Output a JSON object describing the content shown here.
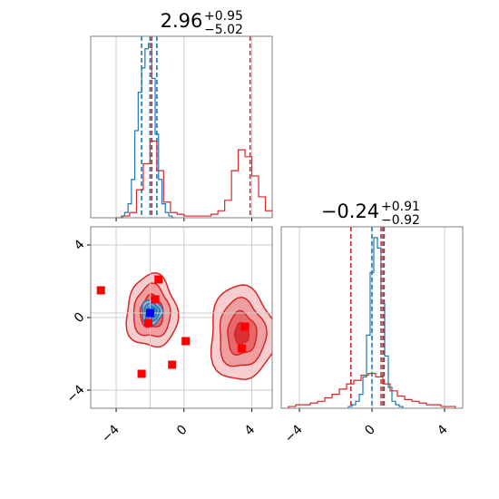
{
  "chart_data": {
    "type": "corner",
    "colors": {
      "blue": "#1f77b4",
      "red": "#d62728",
      "grid": "#cccccc",
      "axes": "#808080",
      "marker_blue": "#0000ff",
      "marker_red": "#ff0000"
    },
    "grid": true,
    "parameters": [
      {
        "title_main": "2.96",
        "title_sup": "+0.95",
        "title_sub": "−5.02",
        "range": [
          -5.5,
          5.2
        ],
        "ticks": [
          -4,
          0,
          4
        ],
        "tick_labels": [
          "−4",
          "0",
          "4"
        ]
      },
      {
        "title_main": "−0.24",
        "title_sup": "+0.91",
        "title_sub": "−0.92",
        "range": [
          -5,
          5
        ],
        "ticks": [
          -4,
          0,
          4
        ],
        "tick_labels": [
          "−4",
          "0",
          "4"
        ]
      }
    ],
    "hist_1": {
      "series": [
        {
          "color": "blue",
          "quantiles": [
            -2.5,
            -2.0,
            -1.6
          ],
          "bin_centers": [
            -3.6,
            -3.4,
            -3.2,
            -3.0,
            -2.8,
            -2.6,
            -2.4,
            -2.2,
            -2.0,
            -1.8,
            -1.6,
            -1.4,
            -1.2,
            -1.0,
            -0.8,
            -0.6
          ],
          "counts": [
            0.01,
            0.03,
            0.08,
            0.22,
            0.5,
            0.72,
            0.86,
            0.97,
            1.0,
            0.8,
            0.48,
            0.22,
            0.08,
            0.03,
            0.01,
            0.0
          ]
        },
        {
          "color": "red",
          "quantiles": [
            -1.9,
            3.9
          ],
          "bin_centers": [
            -3.8,
            -3.4,
            -3.0,
            -2.6,
            -2.2,
            -1.8,
            -1.4,
            -1.0,
            -0.6,
            -0.2,
            0.2,
            0.6,
            1.0,
            1.4,
            1.8,
            2.2,
            2.6,
            3.0,
            3.4,
            3.8,
            4.2,
            4.6,
            5.0
          ],
          "counts": [
            0.0,
            0.01,
            0.03,
            0.16,
            0.31,
            0.44,
            0.27,
            0.09,
            0.03,
            0.02,
            0.01,
            0.01,
            0.01,
            0.01,
            0.02,
            0.04,
            0.1,
            0.27,
            0.39,
            0.35,
            0.24,
            0.12,
            0.04
          ]
        }
      ]
    },
    "hist_2": {
      "series": [
        {
          "color": "blue",
          "quantiles": [
            0.0,
            0.6
          ],
          "bin_centers": [
            -1.2,
            -1.0,
            -0.8,
            -0.6,
            -0.4,
            -0.2,
            0.0,
            0.2,
            0.4,
            0.6,
            0.8,
            1.0,
            1.2,
            1.4,
            1.6
          ],
          "counts": [
            0.01,
            0.02,
            0.04,
            0.08,
            0.18,
            0.42,
            0.78,
            0.98,
            0.92,
            0.6,
            0.3,
            0.12,
            0.04,
            0.02,
            0.01
          ]
        },
        {
          "color": "red",
          "quantiles": [
            -1.16,
            0.5,
            0.67
          ],
          "bin_centers": [
            -4.4,
            -4.0,
            -3.6,
            -3.2,
            -2.8,
            -2.4,
            -2.0,
            -1.6,
            -1.2,
            -0.8,
            -0.4,
            0.0,
            0.4,
            0.8,
            1.2,
            1.6,
            2.0,
            2.4,
            2.8,
            3.2,
            3.6,
            4.0,
            4.4
          ],
          "counts": [
            0.01,
            0.02,
            0.02,
            0.03,
            0.04,
            0.06,
            0.08,
            0.11,
            0.14,
            0.16,
            0.19,
            0.2,
            0.18,
            0.14,
            0.1,
            0.07,
            0.05,
            0.04,
            0.03,
            0.02,
            0.02,
            0.01,
            0.01
          ]
        }
      ]
    },
    "contour_2d": {
      "blobs": [
        {
          "color": "red",
          "cx": -1.9,
          "cy": 0.3,
          "rx": 1.5,
          "ry": 2.0
        },
        {
          "color": "red",
          "cx": 3.4,
          "cy": -0.9,
          "rx": 1.9,
          "ry": 2.6
        },
        {
          "color": "blue",
          "cx": -1.9,
          "cy": 0.3,
          "rx": 0.6,
          "ry": 0.7
        }
      ],
      "markers": [
        {
          "color": "marker_red",
          "x": -4.9,
          "y": 1.5
        },
        {
          "color": "marker_red",
          "x": -1.5,
          "y": 2.1
        },
        {
          "color": "marker_red",
          "x": -1.7,
          "y": 1.0
        },
        {
          "color": "marker_red",
          "x": -2.1,
          "y": -0.3
        },
        {
          "color": "marker_red",
          "x": 0.1,
          "y": -1.3
        },
        {
          "color": "marker_red",
          "x": -0.7,
          "y": -2.6
        },
        {
          "color": "marker_red",
          "x": -2.5,
          "y": -3.1
        },
        {
          "color": "marker_red",
          "x": 3.6,
          "y": -0.5
        },
        {
          "color": "marker_red",
          "x": 3.4,
          "y": -1.7
        },
        {
          "color": "marker_blue",
          "x": -2.0,
          "y": 0.25
        }
      ],
      "truth_lines": {
        "x": -2.0,
        "y": 0.25
      }
    }
  }
}
